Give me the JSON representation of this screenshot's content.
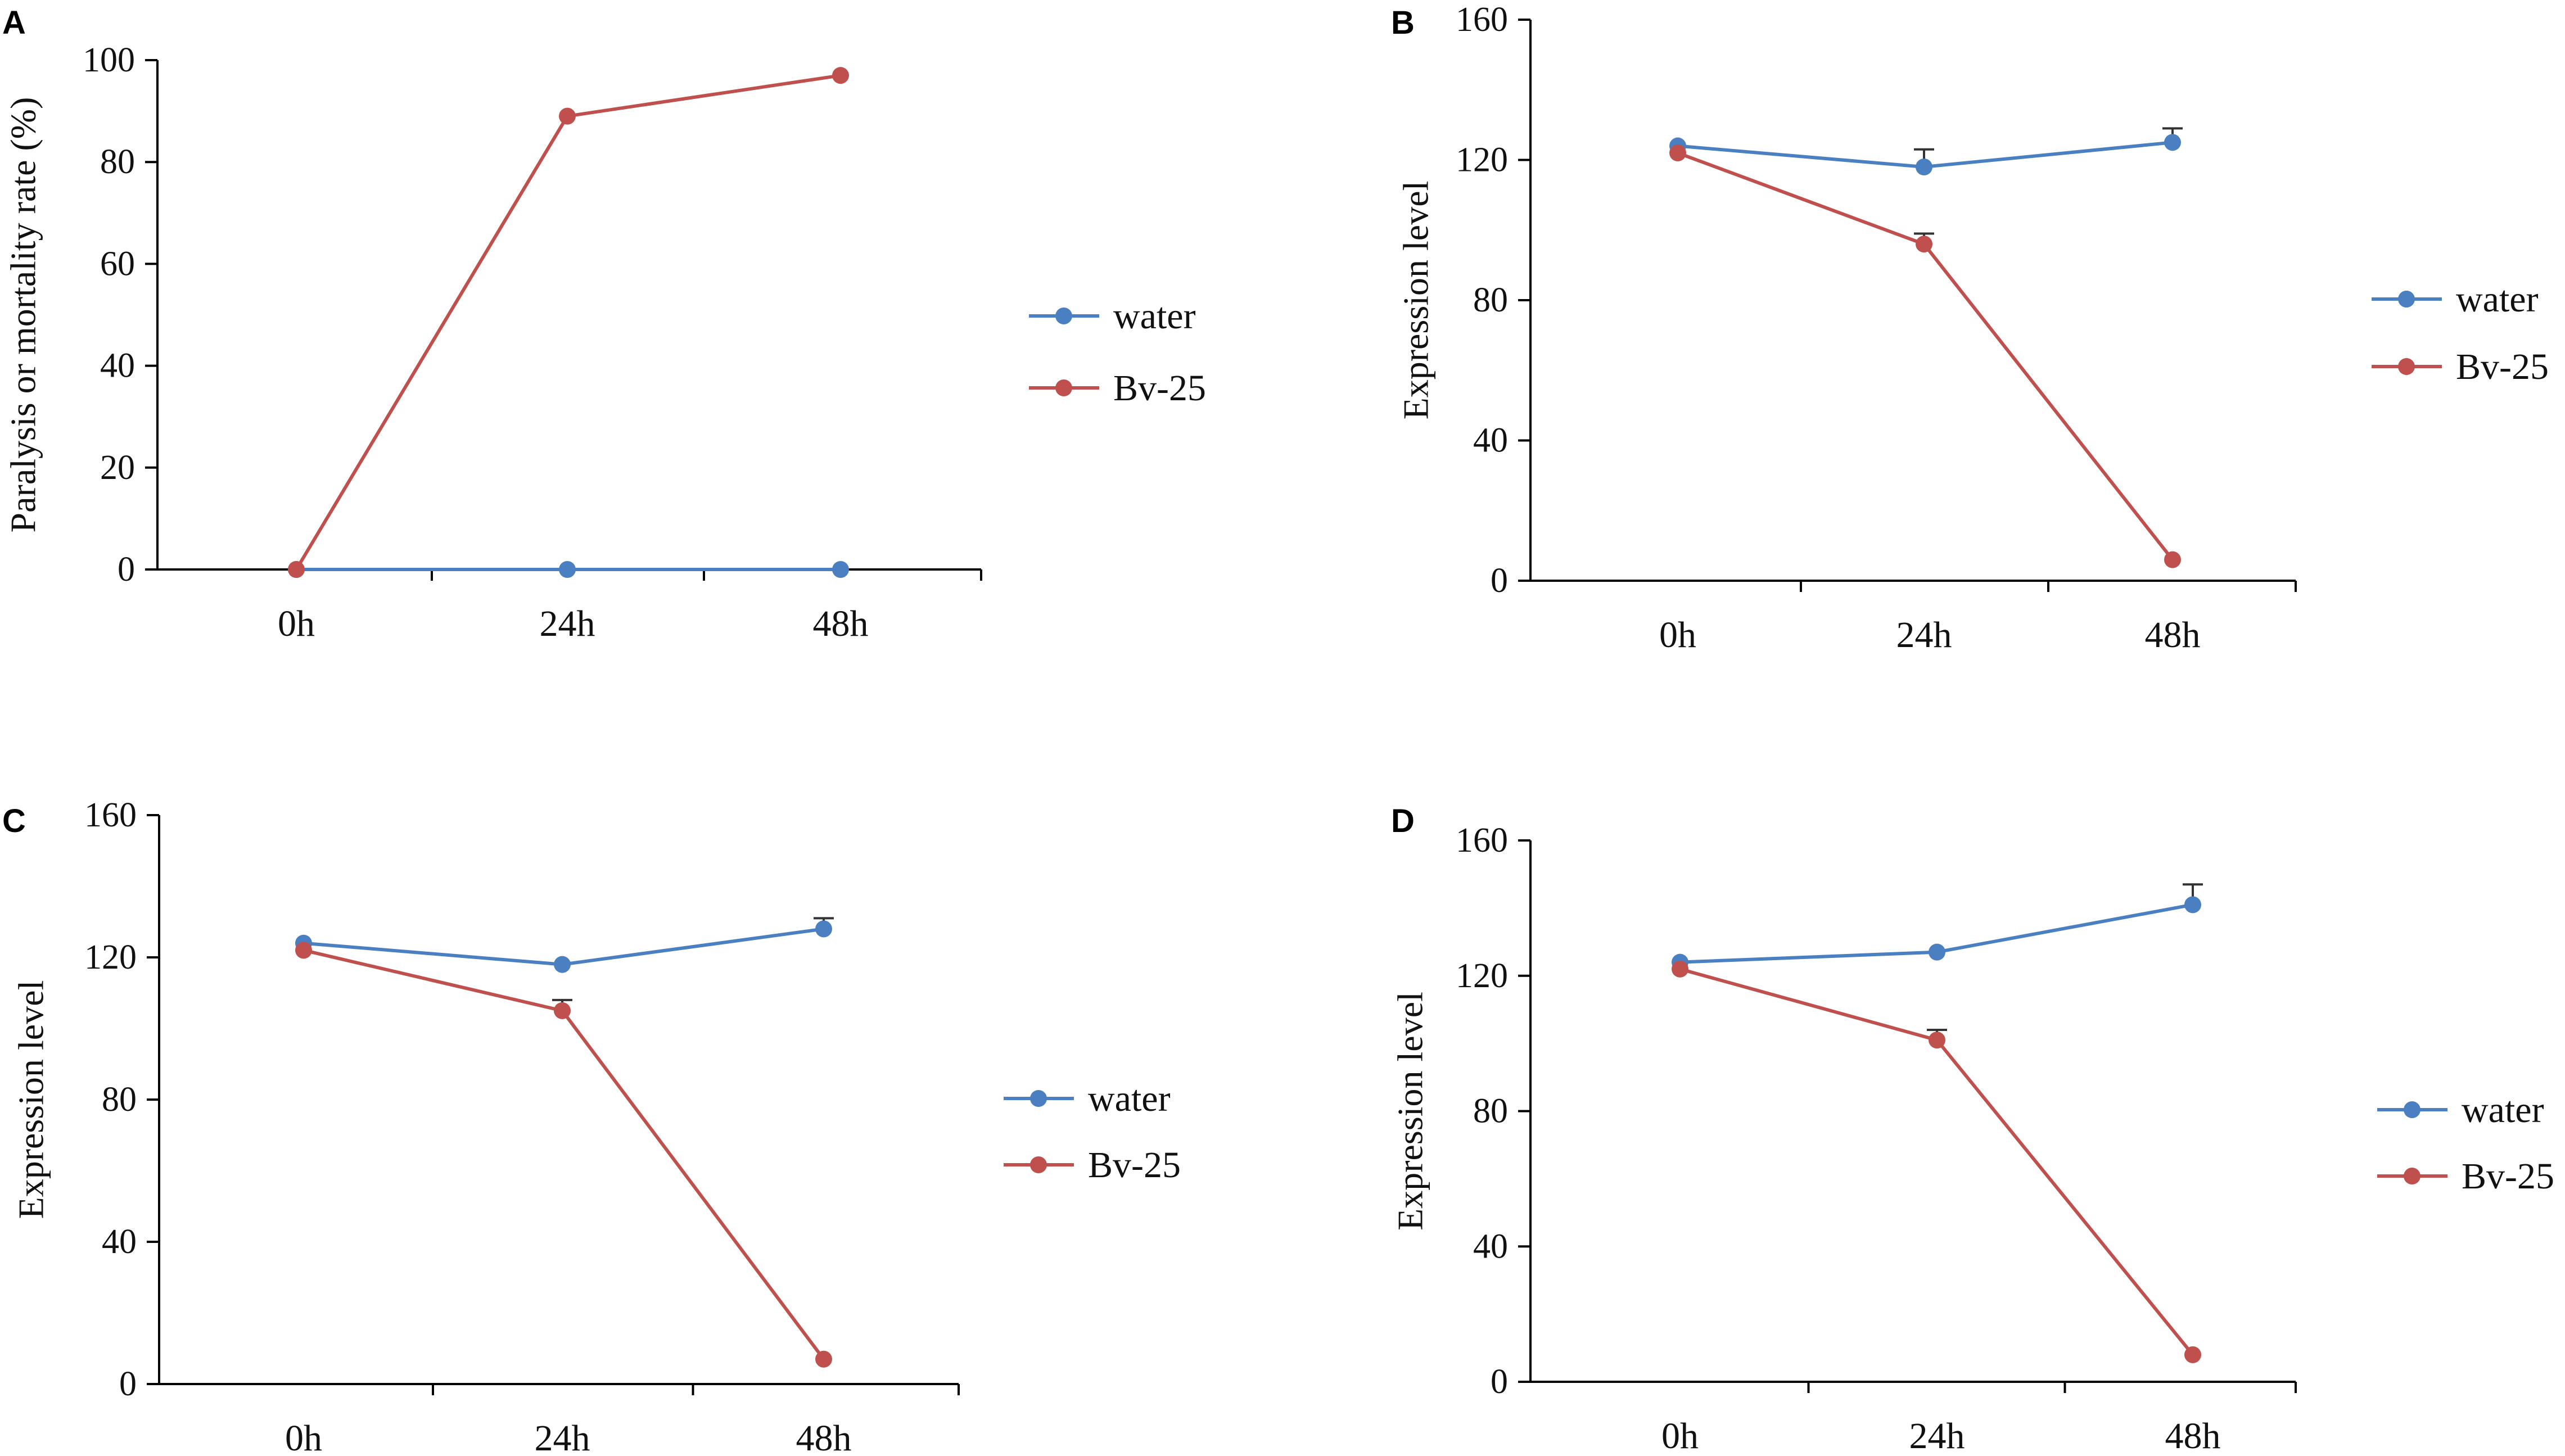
{
  "colors": {
    "water": "#4a7fc1",
    "bv25": "#c0504d",
    "axis": "#000000"
  },
  "chart_data": [
    {
      "panel": "A",
      "type": "line",
      "categories": [
        "0h",
        "24h",
        "48h"
      ],
      "ylabel": "Paralysis or mortality rate (%)",
      "ylim": [
        0,
        100
      ],
      "yticks": [
        "0",
        "20",
        "40",
        "60",
        "80",
        "100"
      ],
      "legend_position": "right",
      "series": [
        {
          "name": "water",
          "values": [
            0,
            0,
            0
          ],
          "errors": [
            0,
            0,
            0
          ]
        },
        {
          "name": "Bv-25",
          "values": [
            0,
            89,
            97
          ],
          "errors": [
            0,
            0,
            0
          ]
        }
      ]
    },
    {
      "panel": "B",
      "type": "line",
      "categories": [
        "0h",
        "24h",
        "48h"
      ],
      "ylabel": "Expression level",
      "ylim": [
        0,
        160
      ],
      "yticks": [
        "0",
        "40",
        "80",
        "120",
        "160"
      ],
      "legend_position": "right",
      "series": [
        {
          "name": "water",
          "values": [
            124,
            118,
            125
          ],
          "errors": [
            0,
            5,
            4
          ]
        },
        {
          "name": "Bv-25",
          "values": [
            122,
            96,
            6
          ],
          "errors": [
            0,
            3,
            0
          ]
        }
      ]
    },
    {
      "panel": "C",
      "type": "line",
      "categories": [
        "0h",
        "24h",
        "48h"
      ],
      "ylabel": "Expression level",
      "ylim": [
        0,
        160
      ],
      "yticks": [
        "0",
        "40",
        "80",
        "120",
        "160"
      ],
      "legend_position": "right",
      "series": [
        {
          "name": "water",
          "values": [
            124,
            118,
            128
          ],
          "errors": [
            0,
            0,
            3
          ]
        },
        {
          "name": "Bv-25",
          "values": [
            122,
            105,
            7
          ],
          "errors": [
            0,
            3,
            0
          ]
        }
      ]
    },
    {
      "panel": "D",
      "type": "line",
      "categories": [
        "0h",
        "24h",
        "48h"
      ],
      "ylabel": "Expression level",
      "ylim": [
        0,
        160
      ],
      "yticks": [
        "0",
        "40",
        "80",
        "120",
        "160"
      ],
      "legend_position": "right",
      "series": [
        {
          "name": "water",
          "values": [
            124,
            127,
            141
          ],
          "errors": [
            0,
            0,
            6
          ]
        },
        {
          "name": "Bv-25",
          "values": [
            122,
            101,
            8
          ],
          "errors": [
            0,
            3,
            0
          ]
        }
      ]
    }
  ]
}
